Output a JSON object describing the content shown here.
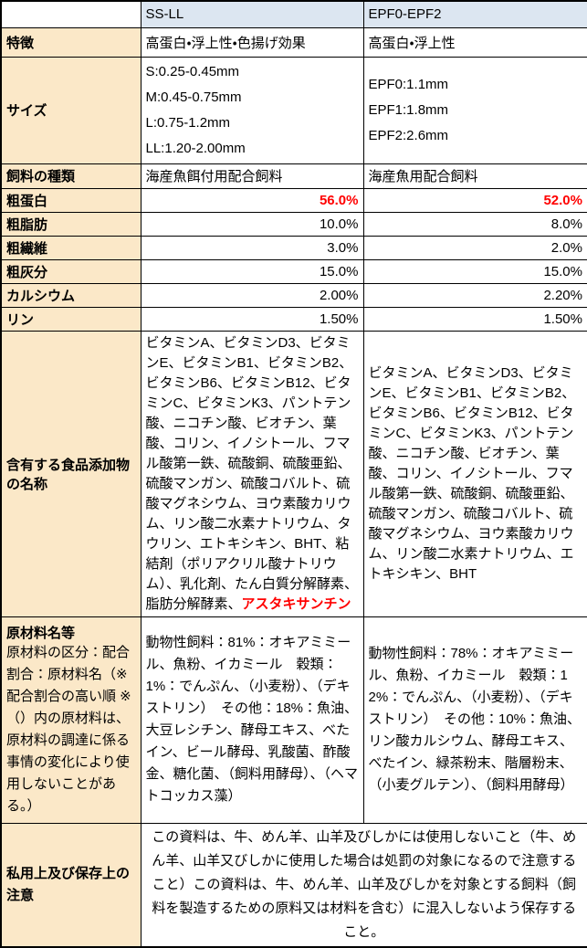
{
  "colors": {
    "header_bg": "#DCE6F1",
    "label_bg": "#FBE8C8",
    "highlight_red": "#FF0000",
    "border": "#000000"
  },
  "table": {
    "columns": {
      "c1": "",
      "c2": "SS-LL",
      "c3": "EPF0-EPF2"
    },
    "feature": {
      "label": "特徴",
      "ss": "高蛋白・浮上性・色揚げ効果",
      "epf": "高蛋白・浮上性"
    },
    "size": {
      "label": "サイズ",
      "ss": "S:0.25-0.45mm\nM:0.45-0.75mm\nL:0.75-1.2mm\nLL:1.20-2.00mm",
      "epf": "EPF0:1.1mm\nEPF1:1.8mm\nEPF2:2.6mm"
    },
    "feed_type": {
      "label": "飼料の種類",
      "ss": "海産魚餌付用配合飼料",
      "epf": "海産魚用配合飼料"
    },
    "nutrients": [
      {
        "label": "粗蛋白",
        "ss": "56.0%",
        "epf": "52.0%"
      },
      {
        "label": "粗脂肪",
        "ss": "10.0%",
        "epf": "8.0%"
      },
      {
        "label": "粗繊維",
        "ss": "3.0%",
        "epf": "2.0%"
      },
      {
        "label": "粗灰分",
        "ss": "15.0%",
        "epf": "15.0%"
      },
      {
        "label": "カルシウム",
        "ss": "2.00%",
        "epf": "2.20%"
      },
      {
        "label": "リン",
        "ss": "1.50%",
        "epf": "1.50%"
      }
    ],
    "additives": {
      "label": "含有する食品添加物の名称",
      "ss_main": "ビタミンA、ビタミンD3、ビタミンE、ビタミンB1、ビタミンB2、ビタミンB6、ビタミンB12、ビタミンC、ビタミンK3、パントテン酸、ニコチン酸、ビオチン、葉酸、コリン、イノシトール、フマル酸第一鉄、硫酸銅、硫酸亜鉛、硫酸マンガン、硫酸コバルト、硫酸マグネシウム、ヨウ素酸カリウム、リン酸二水素ナトリウム、タウリン、エトキシキン、BHT、粘結剤（ポリアクリル酸ナトリウム）、乳化剤、たん白質分解酵素、脂肪分解酵素、",
      "ss_highlight": "アスタキサンチン",
      "epf": "ビタミンA、ビタミンD3、ビタミンE、ビタミンB1、ビタミンB2、ビタミンB6、ビタミンB12、ビタミンC、ビタミンK3、パントテン酸、ニコチン酸、ビオチン、葉酸、コリン、イノシトール、フマル酸第一鉄、硫酸銅、硫酸亜鉛、硫酸マンガン、硫酸コバルト、硫酸マグネシウム、ヨウ素酸カリウム、リン酸二水素ナトリウム、エトキシキン、BHT"
    },
    "materials": {
      "label_title": "原材料名等",
      "label_desc": "原材料の区分：配合割合：原材料名（※配合割合の高い順 ※（）内の原材料は、原材料の調達に係る事情の変化により使用しないことがある。）",
      "ss": "動物性飼料：81%：オキアミミール、魚粉、イカミール　穀類：1%：でんぷん、（小麦粉）、（デキストリン）　その他：18%：魚油、大豆レシチン、酵母エキス、べたイン、ビール酵母、乳酸菌、酢酸金、糖化菌、（飼料用酵母）、（ヘマトコッカス藻）",
      "epf": "動物性飼料：78%：オキアミミール、魚粉、イカミール　穀類：12%：でんぷん、（小麦粉）、（デキストリン）　その他：10%：魚油、リン酸カルシウム、酵母エキス、べたイン、緑茶粉末、階層粉末、（小麦グルテン）、（飼料用酵母）"
    },
    "notes": {
      "label": "私用上及び保存上の注意",
      "text": "この資料は、牛、めん羊、山羊及びしかには使用しないこと（牛、めん羊、山羊又びしかに使用した場合は処罰の対象になるので注意すること）この資料は、牛、めん羊、山羊及びしかを対象とする飼料（飼料を製造するための原料又は材料を含む）に混入しないよう保存すること。"
    }
  }
}
